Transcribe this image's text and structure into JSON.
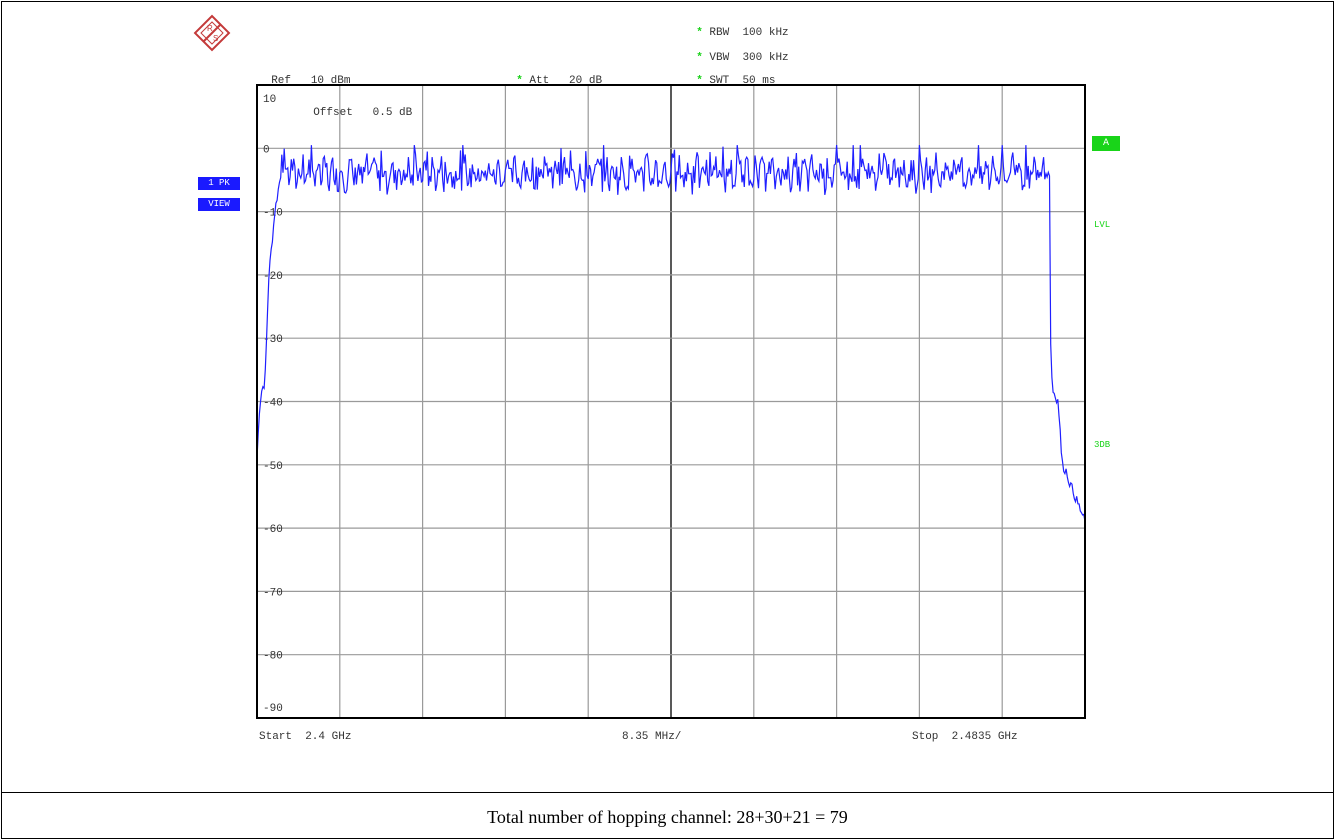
{
  "header": {
    "ref_label": "Ref",
    "ref_value": "10 dBm",
    "att_label": "Att",
    "att_value": "20 dB",
    "rbw_label": "RBW",
    "rbw_value": "100 kHz",
    "vbw_label": "VBW",
    "vbw_value": "300 kHz",
    "swt_label": "SWT",
    "swt_value": "50 ms",
    "offset_label": "Offset",
    "offset_value": "0.5 dB",
    "star": "*"
  },
  "left_labels": {
    "trace_mode": "1 PK",
    "trace_view": "VIEW"
  },
  "right_labels": {
    "marker_a": "A",
    "lvl": "LVL",
    "threedb": "3DB"
  },
  "footer": {
    "start": "Start  2.4 GHz",
    "span_per_div": "8.35 MHz/",
    "stop": "Stop  2.4835 GHz"
  },
  "caption": "Total number of hopping channel: 28+30+21 = 79",
  "colors": {
    "trace": "#1f1fff",
    "accent_green": "#19d419",
    "grid": "#9a9a9a",
    "label_bg": "#1a1aff"
  },
  "chart_data": {
    "type": "line",
    "title": "",
    "xlabel": "",
    "ylabel": "",
    "x_unit": "GHz",
    "y_unit": "dBm",
    "xlim": [
      2.4,
      2.4835
    ],
    "ylim": [
      -90,
      10
    ],
    "y_ticks": [
      10,
      0,
      -10,
      -20,
      -30,
      -40,
      -50,
      -60,
      -70,
      -80,
      -90
    ],
    "grid": true,
    "series": [
      {
        "values_x": [
          2.4,
          2.40025,
          2.4005,
          2.4008,
          2.4012,
          2.4018,
          2.4025,
          2.4035,
          2.405,
          2.41,
          2.42,
          2.43,
          2.44,
          2.45,
          2.46,
          2.47,
          2.48,
          2.4795,
          2.4798,
          2.4802,
          2.4808,
          2.4812,
          2.4816,
          2.482,
          2.4825,
          2.483,
          2.4835
        ],
        "values_y": [
          -49,
          -41,
          -38,
          -37,
          -20,
          -10,
          -3,
          -4,
          -4,
          -4,
          -4,
          -4,
          -4,
          -4,
          -4,
          -4,
          -4,
          -5,
          -20,
          -38,
          -40,
          -50,
          -51,
          -53,
          -55,
          -57,
          -59
        ]
      }
    ]
  }
}
